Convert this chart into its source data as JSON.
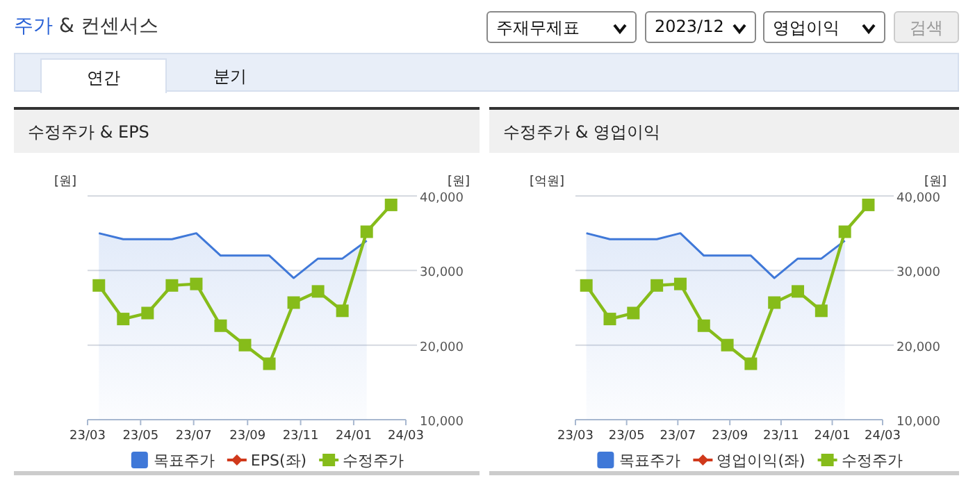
{
  "chart_data": [
    {
      "type": "other",
      "title": "주가 & 컨센서스",
      "annotations": [
        "주재무제표",
        "2023/12",
        "영업이익",
        "검색",
        "연간",
        "분기"
      ]
    },
    {
      "type": "line",
      "title": "수정주가 & EPS",
      "ylabel": "[원]",
      "y2label": "[원]",
      "x": [
        "2023-03-14",
        "2023-04-11",
        "2023-05-09",
        "2023-06-06",
        "2023-07-04",
        "2023-08-01",
        "2023-08-29",
        "2023-09-26",
        "2023-10-24",
        "2023-11-21",
        "2023-12-19",
        "2024-01-16",
        "2024-02-13"
      ],
      "xlim": [
        "2023-03",
        "2024-03"
      ],
      "xticks": [
        {
          "value": "2023-03",
          "label": "23/03"
        },
        {
          "value": "2023-05",
          "label": "23/05"
        },
        {
          "value": "2023-07",
          "label": "23/07"
        },
        {
          "value": "2023-09",
          "label": "23/09"
        },
        {
          "value": "2023-11",
          "label": "23/11"
        },
        {
          "value": "2024-01",
          "label": "24/01"
        },
        {
          "value": "2024-03",
          "label": "24/03"
        }
      ],
      "y2lim": [
        10000,
        40000
      ],
      "y2ticks": [
        {
          "value": 10000,
          "label": "10,000"
        },
        {
          "value": 20000,
          "label": "20,000"
        },
        {
          "value": 30000,
          "label": "30,000"
        },
        {
          "value": 40000,
          "label": "40,000"
        }
      ],
      "grid": "y",
      "legend": "bottom",
      "series": [
        {
          "name": "목표주가",
          "type": "area",
          "axis": "y2",
          "color": "#3f78d8",
          "marker": "none",
          "values": [
            35000,
            34200,
            34200,
            34200,
            35000,
            32000,
            32000,
            32000,
            29000,
            31600,
            31600,
            34000,
            null
          ]
        },
        {
          "name": "EPS(좌)",
          "type": "line",
          "axis": "y",
          "color": "#d0391b",
          "marker": "diamond",
          "values": [
            null,
            null,
            null,
            null,
            null,
            null,
            null,
            null,
            null,
            null,
            null,
            null,
            null
          ]
        },
        {
          "name": "수정주가",
          "type": "line",
          "axis": "y2",
          "color": "#86bc1a",
          "marker": "square",
          "values": [
            28000,
            23500,
            24300,
            28000,
            28200,
            22600,
            20000,
            17500,
            25700,
            27200,
            24600,
            35200,
            38800
          ]
        }
      ]
    },
    {
      "type": "line",
      "title": "수정주가 & 영업이익",
      "ylabel": "[억원]",
      "y2label": "[원]",
      "x": [
        "2023-03-14",
        "2023-04-11",
        "2023-05-09",
        "2023-06-06",
        "2023-07-04",
        "2023-08-01",
        "2023-08-29",
        "2023-09-26",
        "2023-10-24",
        "2023-11-21",
        "2023-12-19",
        "2024-01-16",
        "2024-02-13"
      ],
      "xlim": [
        "2023-03",
        "2024-03"
      ],
      "xticks": [
        {
          "value": "2023-03",
          "label": "23/03"
        },
        {
          "value": "2023-05",
          "label": "23/05"
        },
        {
          "value": "2023-07",
          "label": "23/07"
        },
        {
          "value": "2023-09",
          "label": "23/09"
        },
        {
          "value": "2023-11",
          "label": "23/11"
        },
        {
          "value": "2024-01",
          "label": "24/01"
        },
        {
          "value": "2024-03",
          "label": "24/03"
        }
      ],
      "y2lim": [
        10000,
        40000
      ],
      "y2ticks": [
        {
          "value": 10000,
          "label": "10,000"
        },
        {
          "value": 20000,
          "label": "20,000"
        },
        {
          "value": 30000,
          "label": "30,000"
        },
        {
          "value": 40000,
          "label": "40,000"
        }
      ],
      "grid": "y",
      "legend": "bottom",
      "series": [
        {
          "name": "목표주가",
          "type": "area",
          "axis": "y2",
          "color": "#3f78d8",
          "marker": "none",
          "values": [
            35000,
            34200,
            34200,
            34200,
            35000,
            32000,
            32000,
            32000,
            29000,
            31600,
            31600,
            34000,
            null
          ]
        },
        {
          "name": "영업이익(좌)",
          "type": "line",
          "axis": "y",
          "color": "#d0391b",
          "marker": "diamond",
          "values": [
            null,
            null,
            null,
            null,
            null,
            null,
            null,
            null,
            null,
            null,
            null,
            null,
            null
          ]
        },
        {
          "name": "수정주가",
          "type": "line",
          "axis": "y2",
          "color": "#86bc1a",
          "marker": "square",
          "values": [
            28000,
            23500,
            24300,
            28000,
            28200,
            22600,
            20000,
            17500,
            25700,
            27200,
            24600,
            35200,
            38800
          ]
        }
      ]
    }
  ]
}
